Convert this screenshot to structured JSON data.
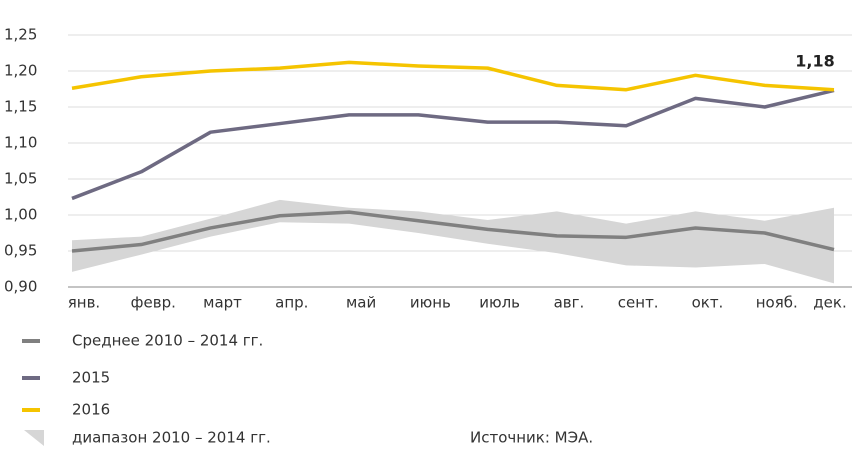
{
  "chart_data": {
    "type": "line",
    "annotation": "1,18",
    "source": "Источник: МЭА.",
    "categories": [
      "янв.",
      "февр.",
      "март",
      "апр.",
      "май",
      "июнь",
      "июль",
      "авг.",
      "сент.",
      "окт.",
      "нояб.",
      "дек."
    ],
    "range": {
      "name": "диапазон 2010 – 2014 гг.",
      "color": "#d6d6d6",
      "upper": [
        0.965,
        0.97,
        0.995,
        1.021,
        1.01,
        1.005,
        0.993,
        1.005,
        0.988,
        1.005,
        0.992,
        1.01
      ],
      "lower": [
        0.921,
        0.945,
        0.97,
        0.99,
        0.988,
        0.975,
        0.96,
        0.947,
        0.93,
        0.927,
        0.932,
        0.905
      ]
    },
    "series": [
      {
        "name": "Среднее 2010 – 2014 гг.",
        "color": "#808080",
        "values": [
          0.95,
          0.959,
          0.982,
          0.999,
          1.004,
          0.992,
          0.98,
          0.971,
          0.969,
          0.982,
          0.975,
          0.952
        ]
      },
      {
        "name": "2015",
        "color": "#6e6a82",
        "values": [
          1.023,
          1.06,
          1.115,
          1.127,
          1.139,
          1.139,
          1.129,
          1.129,
          1.124,
          1.162,
          1.15,
          1.173
        ]
      },
      {
        "name": "2016",
        "color": "#f5c400",
        "values": [
          1.176,
          1.192,
          1.2,
          1.204,
          1.212,
          1.207,
          1.204,
          1.18,
          1.174,
          1.194,
          1.18,
          1.174
        ]
      }
    ],
    "ylim": [
      0.9,
      1.25
    ],
    "yticks": [
      {
        "value": 0.9,
        "label": "0,90"
      },
      {
        "value": 0.95,
        "label": "0,95"
      },
      {
        "value": 1.0,
        "label": "1,00"
      },
      {
        "value": 1.05,
        "label": "1,05"
      },
      {
        "value": 1.1,
        "label": "1,10"
      },
      {
        "value": 1.15,
        "label": "1,15"
      },
      {
        "value": 1.2,
        "label": "1,20"
      },
      {
        "value": 1.25,
        "label": "1,25"
      }
    ],
    "grid": true
  }
}
